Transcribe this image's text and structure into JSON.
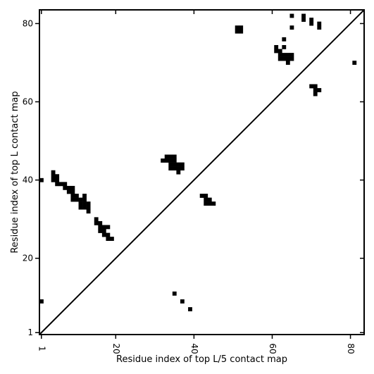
{
  "chart_data": {
    "type": "heatmap",
    "title": "",
    "xlabel": "Residue index of top L/5 contact map",
    "ylabel": "Residue index of top L contact map",
    "xlim": [
      0.5,
      83.5
    ],
    "ylim": [
      0.5,
      83.5
    ],
    "x_ticks": [
      {
        "value": 1,
        "label": "1"
      },
      {
        "value": 20,
        "label": "20"
      },
      {
        "value": 40,
        "label": "40"
      },
      {
        "value": 60,
        "label": "60"
      },
      {
        "value": 80,
        "label": "80"
      }
    ],
    "y_ticks": [
      {
        "value": 1,
        "label": "1"
      },
      {
        "value": 20,
        "label": "20"
      },
      {
        "value": 40,
        "label": "40"
      },
      {
        "value": 60,
        "label": "60"
      },
      {
        "value": 80,
        "label": "80"
      }
    ],
    "diagonal": true,
    "grid": false,
    "cell_color": "#000000",
    "upper_triangle": {
      "contacts": [
        [
          1,
          40
        ],
        [
          4,
          42
        ],
        [
          4,
          41
        ],
        [
          4,
          40
        ],
        [
          5,
          41
        ],
        [
          5,
          40
        ],
        [
          5,
          39
        ],
        [
          6,
          39
        ],
        [
          7,
          39
        ],
        [
          7,
          38
        ],
        [
          8,
          38
        ],
        [
          9,
          38
        ],
        [
          9,
          37
        ],
        [
          8,
          37
        ],
        [
          9,
          36
        ],
        [
          9,
          35
        ],
        [
          10,
          36
        ],
        [
          10,
          35
        ],
        [
          11,
          35
        ],
        [
          11,
          34
        ],
        [
          12,
          36
        ],
        [
          12,
          35
        ],
        [
          12,
          34
        ],
        [
          11,
          33
        ],
        [
          12,
          33
        ],
        [
          13,
          34
        ],
        [
          13,
          33
        ],
        [
          13,
          32
        ],
        [
          15,
          30
        ],
        [
          15,
          29
        ],
        [
          16,
          29
        ],
        [
          16,
          28
        ],
        [
          16,
          27
        ],
        [
          17,
          28
        ],
        [
          17,
          27
        ],
        [
          17,
          26
        ],
        [
          18,
          28
        ],
        [
          18,
          26
        ],
        [
          18,
          25
        ],
        [
          19,
          25
        ],
        [
          32,
          45
        ],
        [
          33,
          46
        ],
        [
          33,
          45
        ],
        [
          34,
          46
        ],
        [
          34,
          45
        ],
        [
          34,
          44
        ],
        [
          34,
          43
        ],
        [
          35,
          46
        ],
        [
          35,
          45
        ],
        [
          35,
          44
        ],
        [
          35,
          43
        ],
        [
          36,
          44
        ],
        [
          36,
          43
        ],
        [
          36,
          42
        ],
        [
          37,
          44
        ],
        [
          37,
          43
        ],
        [
          42,
          36
        ],
        [
          43,
          36
        ],
        [
          43,
          35
        ],
        [
          43,
          34
        ],
        [
          44,
          35
        ],
        [
          44,
          34
        ],
        [
          45,
          34
        ],
        [
          51,
          79
        ],
        [
          51,
          78
        ],
        [
          52,
          79
        ],
        [
          52,
          78
        ],
        [
          61,
          74
        ],
        [
          61,
          73
        ],
        [
          62,
          73
        ],
        [
          62,
          72
        ],
        [
          62,
          71
        ],
        [
          63,
          76
        ],
        [
          63,
          74
        ],
        [
          63,
          72
        ],
        [
          63,
          71
        ],
        [
          64,
          72
        ],
        [
          64,
          71
        ],
        [
          64,
          70
        ],
        [
          65,
          72
        ],
        [
          65,
          71
        ],
        [
          65,
          82
        ],
        [
          65,
          79
        ],
        [
          68,
          82
        ],
        [
          68,
          81
        ],
        [
          70,
          81
        ],
        [
          70,
          80
        ],
        [
          72,
          80
        ],
        [
          72,
          79
        ],
        [
          70,
          64
        ],
        [
          71,
          64
        ],
        [
          71,
          63
        ],
        [
          71,
          62
        ],
        [
          72,
          63
        ],
        [
          81,
          70
        ]
      ]
    },
    "lower_triangle": {
      "contacts": [
        [
          1,
          9
        ],
        [
          35,
          11
        ],
        [
          37,
          9
        ],
        [
          39,
          7
        ]
      ]
    }
  }
}
